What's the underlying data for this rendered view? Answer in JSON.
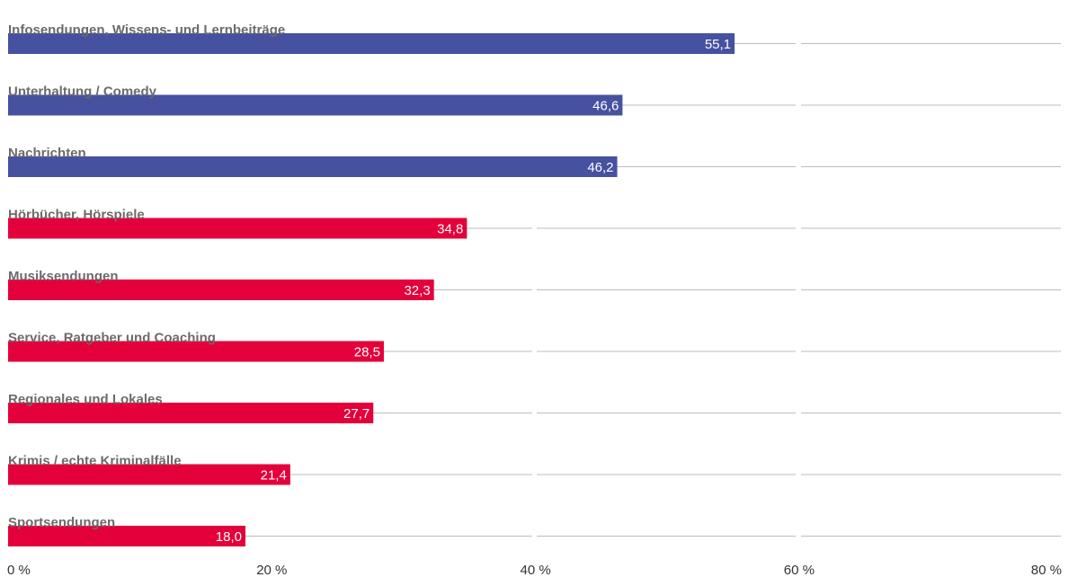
{
  "chart_data": {
    "type": "bar",
    "orientation": "horizontal",
    "categories": [
      "Infosendungen, Wissens- und Lernbeiträge",
      "Unterhaltung / Comedy",
      "Nachrichten",
      "Hörbücher, Hörspiele",
      "Musiksendungen",
      "Service, Ratgeber und Coaching",
      "Regionales und Lokales",
      "Krimis / echte Kriminalfälle",
      "Sportsendungen"
    ],
    "values": [
      55.1,
      46.6,
      46.2,
      34.8,
      32.3,
      28.5,
      27.7,
      21.4,
      18.0
    ],
    "value_labels": [
      "55,1",
      "46,6",
      "46,2",
      "34,8",
      "32,3",
      "28,5",
      "27,7",
      "21,4",
      "18,0"
    ],
    "bar_colors": [
      "#4651a0",
      "#4651a0",
      "#4651a0",
      "#e4003a",
      "#e4003a",
      "#e4003a",
      "#e4003a",
      "#e4003a",
      "#e4003a"
    ],
    "xlim": [
      0,
      80
    ],
    "x_ticks": [
      0,
      20,
      40,
      60,
      80
    ],
    "x_tick_labels": [
      "0 %",
      "20 %",
      "40 %",
      "60 %",
      "80 %"
    ],
    "grid": true,
    "title": "",
    "xlabel": "",
    "ylabel": ""
  }
}
